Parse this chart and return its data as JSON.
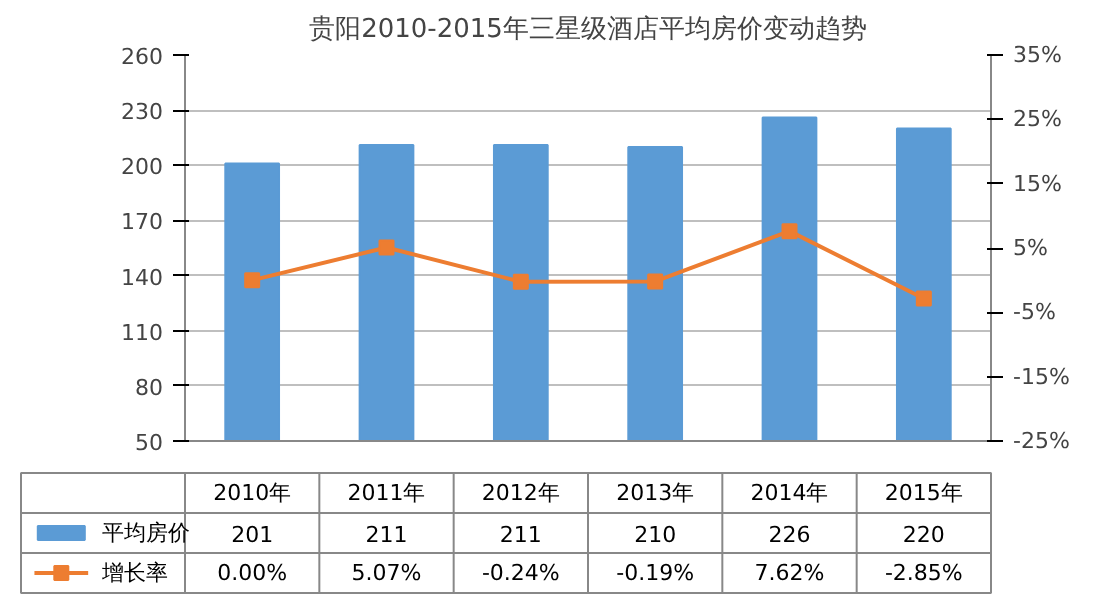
{
  "chart_data": {
    "type": "bar",
    "title": "贵阳2010-2015年三星级酒店平均房价变动趋势",
    "categories": [
      "2010年",
      "2011年",
      "2012年",
      "2013年",
      "2014年",
      "2015年"
    ],
    "series": [
      {
        "name": "平均房价",
        "color": "#5b9bd5",
        "values": [
          201,
          211,
          211,
          210,
          226,
          220
        ],
        "value_labels": [
          "201",
          "211",
          "211",
          "210",
          "226",
          "220"
        ]
      },
      {
        "name": "增长率",
        "type": "line",
        "axis": "y2",
        "color": "#ed7d31",
        "marker": "square",
        "values": [
          0.0,
          5.07,
          -0.24,
          -0.19,
          7.62,
          -2.85
        ],
        "value_labels": [
          "0.00%",
          "5.07%",
          "-0.24%",
          "-0.19%",
          "7.62%",
          "-2.85%"
        ]
      }
    ],
    "ylim": [
      50,
      260
    ],
    "yticks": [
      50,
      80,
      110,
      140,
      170,
      200,
      230,
      260
    ],
    "y2lim": [
      -25,
      35
    ],
    "y2ticks": [
      {
        "value": -25,
        "label": "-25%"
      },
      {
        "value": -15,
        "label": "-15%"
      },
      {
        "value": -5,
        "label": "-5%"
      },
      {
        "value": 5,
        "label": "5%"
      },
      {
        "value": 15,
        "label": "15%"
      },
      {
        "value": 25,
        "label": "25%"
      },
      {
        "value": 35,
        "label": "35%"
      }
    ],
    "grid": "y",
    "legend": "bottom"
  }
}
